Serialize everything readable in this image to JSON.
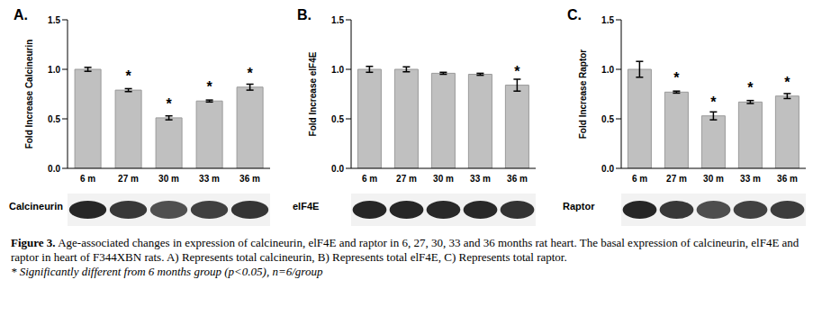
{
  "chart_data": [
    {
      "type": "bar",
      "panel_label": "A.",
      "ylabel": "Fold Increase Calcineurin",
      "blot_label": "Calcineurin",
      "categories": [
        "6 m",
        "27 m",
        "30 m",
        "33 m",
        "36 m"
      ],
      "values": [
        1.0,
        0.79,
        0.51,
        0.68,
        0.82
      ],
      "errors": [
        0.02,
        0.015,
        0.02,
        0.01,
        0.03
      ],
      "significance": [
        null,
        "*",
        "*",
        "*",
        "*"
      ],
      "color": "#c0c0c0",
      "ylim": [
        0,
        1.5
      ],
      "yticks": [
        {
          "value": 0,
          "label": "0.0"
        },
        {
          "value": 0.5,
          "label": "0.5"
        },
        {
          "value": 1,
          "label": "1.0"
        },
        {
          "value": 1.5,
          "label": "1.5"
        }
      ],
      "grid": false
    },
    {
      "type": "bar",
      "panel_label": "B.",
      "ylabel": "Fold Increase elF4E",
      "blot_label": "elF4E",
      "categories": [
        "6 m",
        "27 m",
        "30 m",
        "33 m",
        "36 m"
      ],
      "values": [
        1.0,
        1.0,
        0.96,
        0.95,
        0.84
      ],
      "errors": [
        0.03,
        0.025,
        0.01,
        0.01,
        0.06
      ],
      "significance": [
        null,
        null,
        null,
        null,
        "*"
      ],
      "color": "#c0c0c0",
      "ylim": [
        0,
        1.5
      ],
      "yticks": [
        {
          "value": 0,
          "label": "0.0"
        },
        {
          "value": 0.5,
          "label": "0.5"
        },
        {
          "value": 1,
          "label": "1.0"
        },
        {
          "value": 1.5,
          "label": "1.5"
        }
      ],
      "grid": false
    },
    {
      "type": "bar",
      "panel_label": "C.",
      "ylabel": "Fold Increase Raptor",
      "blot_label": "Raptor",
      "categories": [
        "6 m",
        "27 m",
        "30 m",
        "33 m",
        "36 m"
      ],
      "values": [
        1.0,
        0.77,
        0.53,
        0.67,
        0.73
      ],
      "errors": [
        0.08,
        0.01,
        0.04,
        0.015,
        0.025
      ],
      "significance": [
        null,
        "*",
        "*",
        "*",
        "*"
      ],
      "color": "#c0c0c0",
      "ylim": [
        0,
        1.5
      ],
      "yticks": [
        {
          "value": 0,
          "label": "0.0"
        },
        {
          "value": 0.5,
          "label": "0.5"
        },
        {
          "value": 1,
          "label": "1.0"
        },
        {
          "value": 1.5,
          "label": "1.5"
        }
      ],
      "grid": false
    }
  ],
  "caption": {
    "label": "Figure 3.",
    "text": "Age-associated changes in expression of calcineurin, elF4E and raptor in 6, 27, 30, 33 and 36 months rat heart. The basal expression of calcineurin, elF4E and raptor in heart of F344XBN rats. A) Represents total calcineurin, B) Represents total elF4E, C) Represents total raptor.",
    "footnote": "* Significantly different from 6 months group (p<0.05), n=6/group"
  }
}
